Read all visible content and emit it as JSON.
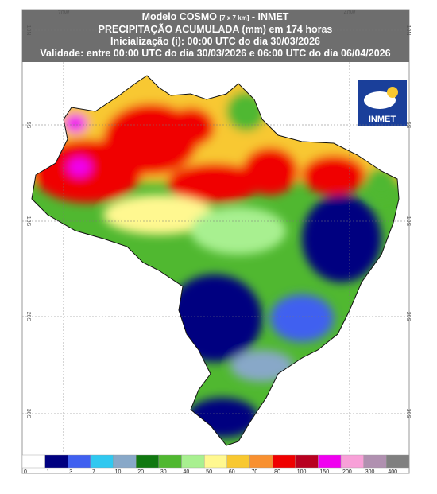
{
  "header": {
    "line1": [
      "Modelo COSMO",
      "[7 x 7 km]",
      "- INMET"
    ],
    "line2": "PRECIPITAÇÃO ACUMULADA (mm) em 174 horas",
    "line3": "Inicialização (i): 00:00 UTC do dia 30/03/2026",
    "line4": "Validade: entre 00:00 UTC do dia 30/03/2026 e 06:00 UTC do dia 06/04/2026"
  },
  "map": {
    "lon_labels": [
      "70W",
      "40W"
    ],
    "lat_labels": [
      "10N",
      "5S",
      "10S",
      "20S",
      "30S"
    ]
  },
  "logo": "INMET",
  "colorbar": {
    "ticks": [
      0,
      1,
      3,
      7,
      10,
      20,
      30,
      40,
      50,
      60,
      70,
      80,
      100,
      150,
      200,
      300,
      400
    ],
    "colors": [
      "#ffffff",
      "#000080",
      "#4060f0",
      "#30c8f0",
      "#88a8c8",
      "#107810",
      "#50b830",
      "#a8f090",
      "#fff890",
      "#f8c830",
      "#f89030",
      "#f00000",
      "#b80020",
      "#f000f0",
      "#f8a0d8",
      "#b090b0",
      "#808080"
    ]
  }
}
